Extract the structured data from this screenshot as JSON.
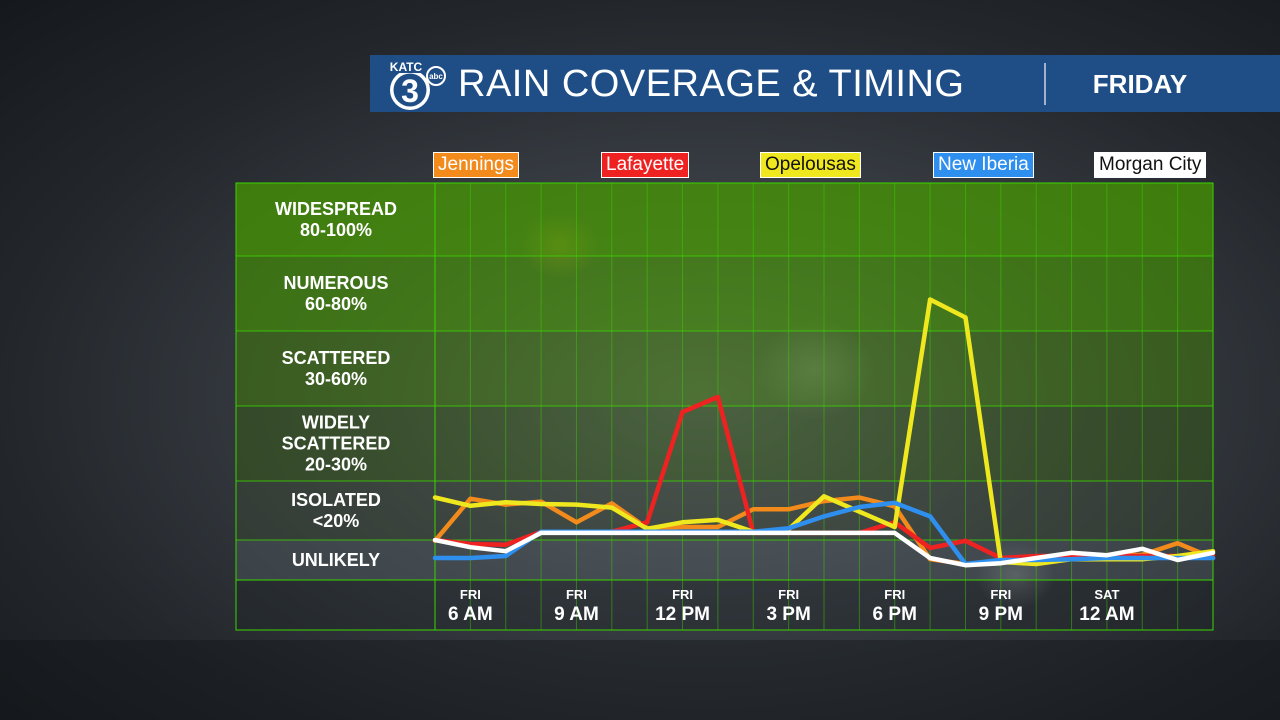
{
  "header": {
    "logo_text": "KATC",
    "logo_number": "3",
    "logo_network": "abc",
    "title": "RAIN COVERAGE & TIMING",
    "day": "FRIDAY",
    "bar_color": "#1f4e86"
  },
  "chart_data": {
    "type": "line",
    "title": "RAIN COVERAGE & TIMING",
    "categories": [
      "Widespread 80-100%",
      "Numerous 60-80%",
      "Scattered 30-60%",
      "Widely Scattered 20-30%",
      "Isolated <20%",
      "Unlikely"
    ],
    "bands": [
      {
        "name": "WIDESPREAD",
        "range": "80-100%",
        "label_lines": [
          "WIDESPREAD",
          "80-100%"
        ]
      },
      {
        "name": "NUMEROUS",
        "range": "60-80%",
        "label_lines": [
          "NUMEROUS",
          "60-80%"
        ]
      },
      {
        "name": "SCATTERED",
        "range": "30-60%",
        "label_lines": [
          "SCATTERED",
          "30-60%"
        ]
      },
      {
        "name": "WIDELY SCATTERED",
        "range": "20-30%",
        "label_lines": [
          "WIDELY",
          "SCATTERED",
          "20-30%"
        ]
      },
      {
        "name": "ISOLATED",
        "range": "<20%",
        "label_lines": [
          "ISOLATED",
          "<20%"
        ]
      },
      {
        "name": "UNLIKELY",
        "range": "",
        "label_lines": [
          "UNLIKELY"
        ]
      }
    ],
    "x_ticks": [
      {
        "day": "FRI",
        "time": "6 AM",
        "hour": 6
      },
      {
        "day": "FRI",
        "time": "9 AM",
        "hour": 9
      },
      {
        "day": "FRI",
        "time": "12 PM",
        "hour": 12
      },
      {
        "day": "FRI",
        "time": "3 PM",
        "hour": 15
      },
      {
        "day": "FRI",
        "time": "6 PM",
        "hour": 18
      },
      {
        "day": "FRI",
        "time": "9 PM",
        "hour": 21
      },
      {
        "day": "SAT",
        "time": "12 AM",
        "hour": 24
      }
    ],
    "x_range_hours": [
      5,
      27
    ],
    "y_unit": "band level (0 = Unlikely, 5 = Widespread)",
    "y_range": [
      0,
      6
    ],
    "x": [
      5,
      6,
      7,
      8,
      9,
      10,
      11,
      12,
      13,
      14,
      15,
      16,
      17,
      18,
      19,
      20,
      21,
      22,
      23,
      24,
      25,
      26,
      27
    ],
    "series": [
      {
        "name": "Jennings",
        "color": "#f28a1c",
        "text_color": "#ffffff",
        "values": [
          0.98,
          1.7,
          1.6,
          1.65,
          1.3,
          1.62,
          1.2,
          1.22,
          1.22,
          1.52,
          1.52,
          1.66,
          1.72,
          1.57,
          0.52,
          0.4,
          0.42,
          0.55,
          0.55,
          0.62,
          0.63,
          0.92,
          0.55
        ]
      },
      {
        "name": "Lafayette",
        "color": "#ef2222",
        "text_color": "#ffffff",
        "values": [
          1.0,
          0.9,
          0.88,
          1.14,
          1.14,
          1.14,
          1.3,
          2.92,
          3.12,
          1.12,
          1.12,
          1.12,
          1.12,
          1.3,
          0.8,
          0.98,
          0.55,
          0.6,
          0.6,
          0.6,
          0.6,
          0.6,
          0.6
        ]
      },
      {
        "name": "Opelousas",
        "color": "#f0e81e",
        "text_color": "#111111",
        "values": [
          1.72,
          1.58,
          1.64,
          1.61,
          1.6,
          1.55,
          1.19,
          1.3,
          1.34,
          1.14,
          1.18,
          1.74,
          1.48,
          1.22,
          4.42,
          4.18,
          0.45,
          0.4,
          0.52,
          0.52,
          0.52,
          0.6,
          0.72
        ]
      },
      {
        "name": "New Iberia",
        "color": "#2f8fef",
        "text_color": "#ffffff",
        "values": [
          0.55,
          0.55,
          0.6,
          1.14,
          1.14,
          1.14,
          1.14,
          1.14,
          1.14,
          1.14,
          1.2,
          1.4,
          1.56,
          1.63,
          1.4,
          0.4,
          0.5,
          0.5,
          0.52,
          0.55,
          0.55,
          0.55,
          0.55
        ]
      },
      {
        "name": "Morgan City",
        "color": "#ffffff",
        "text_color": "#111111",
        "values": [
          1.0,
          0.82,
          0.72,
          1.12,
          1.12,
          1.12,
          1.12,
          1.12,
          1.12,
          1.12,
          1.12,
          1.12,
          1.12,
          1.12,
          0.55,
          0.37,
          0.42,
          0.55,
          0.68,
          0.62,
          0.78,
          0.5,
          0.68
        ]
      }
    ]
  }
}
